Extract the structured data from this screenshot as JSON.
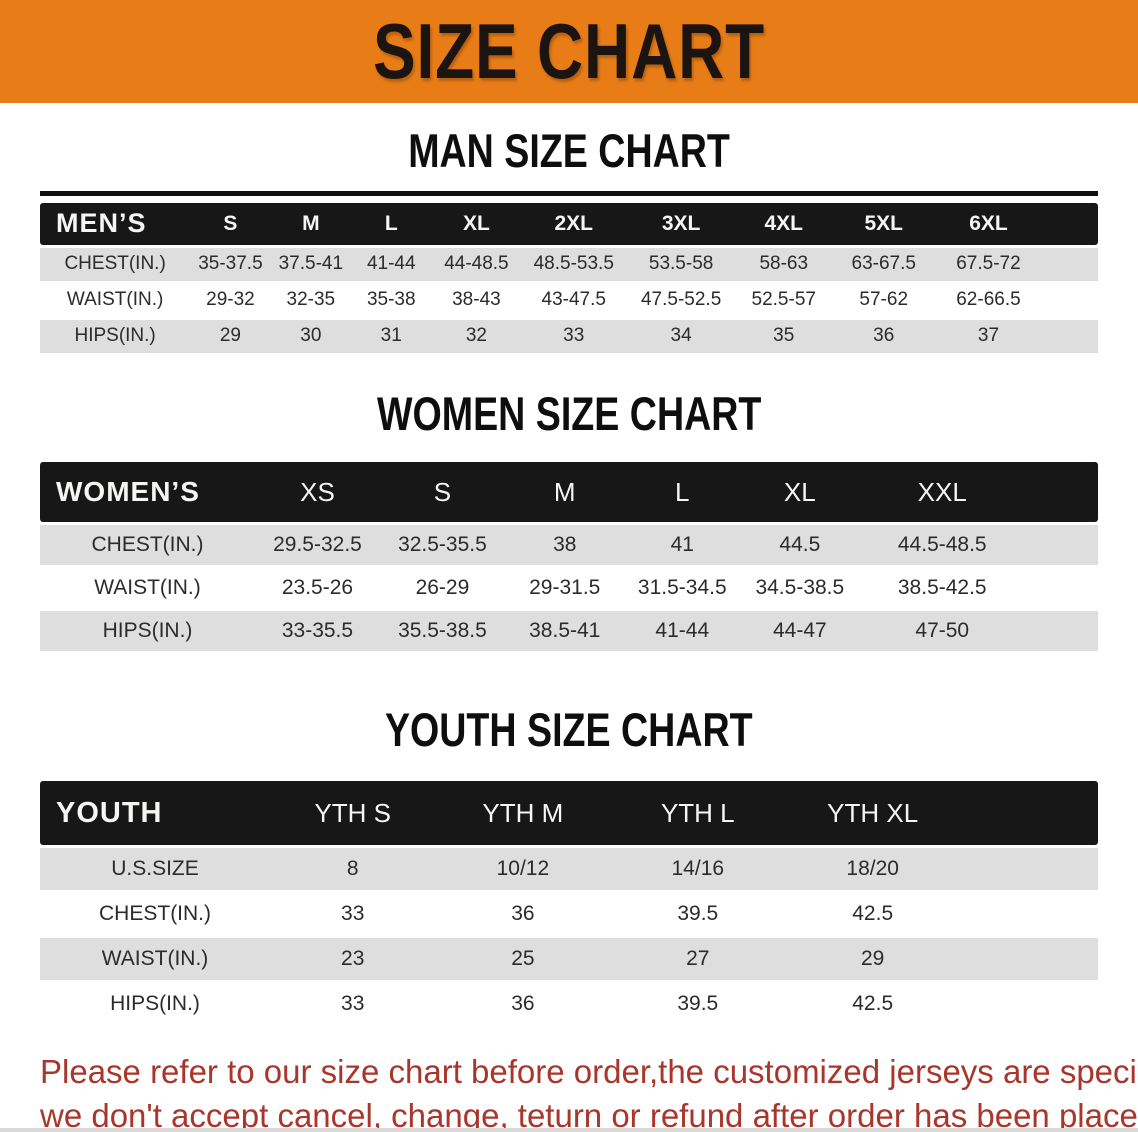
{
  "banner": {
    "title": "SIZE CHART"
  },
  "sections": [
    {
      "heading": "MAN SIZE CHART",
      "table": {
        "header_label": "MEN’S",
        "columns": [
          "S",
          "M",
          "L",
          "XL",
          "2XL",
          "3XL",
          "4XL",
          "5XL",
          "6XL"
        ],
        "rows": [
          {
            "label": "CHEST(IN.)",
            "values": [
              "35-37.5",
              "37.5-41",
              "41-44",
              "44-48.5",
              "48.5-53.5",
              "53.5-58",
              "58-63",
              "63-67.5",
              "67.5-72"
            ]
          },
          {
            "label": "WAIST(IN.)",
            "values": [
              "29-32",
              "32-35",
              "35-38",
              "38-43",
              "43-47.5",
              "47.5-52.5",
              "52.5-57",
              "57-62",
              "62-66.5"
            ]
          },
          {
            "label": "HIPS(IN.)",
            "values": [
              "29",
              "30",
              "31",
              "32",
              "33",
              "34",
              "35",
              "36",
              "37"
            ]
          }
        ]
      }
    },
    {
      "heading": "WOMEN SIZE CHART",
      "table": {
        "header_label": "WOMEN’S",
        "columns": [
          "XS",
          "S",
          "M",
          "L",
          "XL",
          "XXL"
        ],
        "rows": [
          {
            "label": "CHEST(IN.)",
            "values": [
              "29.5-32.5",
              "32.5-35.5",
              "38",
              "41",
              "44.5",
              "44.5-48.5"
            ]
          },
          {
            "label": "WAIST(IN.)",
            "values": [
              "23.5-26",
              "26-29",
              "29-31.5",
              "31.5-34.5",
              "34.5-38.5",
              "38.5-42.5"
            ]
          },
          {
            "label": "HIPS(IN.)",
            "values": [
              "33-35.5",
              "35.5-38.5",
              "38.5-41",
              "41-44",
              "44-47",
              "47-50"
            ]
          }
        ]
      }
    },
    {
      "heading": "YOUTH SIZE CHART",
      "table": {
        "header_label": "YOUTH",
        "columns": [
          "YTH S",
          "YTH M",
          "YTH L",
          "YTH XL"
        ],
        "rows": [
          {
            "label": "U.S.SIZE",
            "values": [
              "8",
              "10/12",
              "14/16",
              "18/20"
            ]
          },
          {
            "label": "CHEST(IN.)",
            "values": [
              "33",
              "36",
              "39.5",
              "42.5"
            ]
          },
          {
            "label": "WAIST(IN.)",
            "values": [
              "23",
              "25",
              "27",
              "29"
            ]
          },
          {
            "label": "HIPS(IN.)",
            "values": [
              "33",
              "36",
              "39.5",
              "42.5"
            ]
          }
        ]
      }
    }
  ],
  "footer": {
    "lines": [
      "Please refer to our size chart before order,the customized jerseys are special products,",
      "we don't accept cancel, change, teturn or refund after order has been placed!"
    ]
  },
  "colors": {
    "banner_bg": "#E87D17",
    "banner_text": "#1B1410",
    "header_bar_bg": "#171717",
    "header_bar_text": "#F5F5F3",
    "row_alt_bg": "#DEDEDE",
    "footer_text": "#A8362B"
  }
}
